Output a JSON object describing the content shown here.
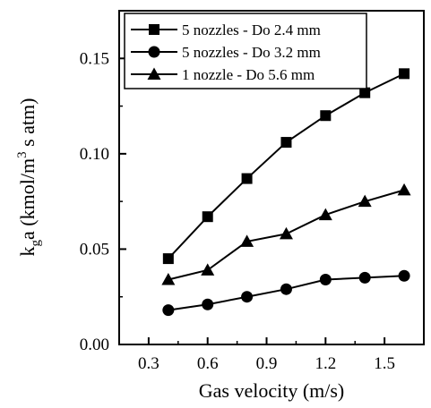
{
  "chart_data": {
    "type": "line",
    "xlabel": "Gas velocity (m/s)",
    "ylabel": {
      "base": "k",
      "base_sub": "g",
      "middle": "a (kmol/m",
      "sup": "3",
      "end": " s atm)"
    },
    "xlim": [
      0.15,
      1.7
    ],
    "ylim": [
      0.0,
      0.175
    ],
    "xticks": [
      0.3,
      0.6,
      0.9,
      1.2,
      1.5
    ],
    "xtick_labels": [
      "0.3",
      "0.6",
      "0.9",
      "1.2",
      "1.5"
    ],
    "yticks": [
      0.0,
      0.05,
      0.1,
      0.15
    ],
    "ytick_labels": [
      "0.00",
      "0.05",
      "0.10",
      "0.15"
    ],
    "grid": false,
    "legend_position": "top-left",
    "x": [
      0.4,
      0.6,
      0.8,
      1.0,
      1.2,
      1.4,
      1.6
    ],
    "series": [
      {
        "name": "5 nozzles - Do 2.4 mm",
        "marker": "square",
        "values": [
          0.045,
          0.067,
          0.087,
          0.106,
          0.12,
          0.132,
          0.142
        ]
      },
      {
        "name": "5 nozzles - Do 3.2 mm",
        "marker": "circle",
        "values": [
          0.018,
          0.021,
          0.025,
          0.029,
          0.034,
          0.035,
          0.036
        ]
      },
      {
        "name": "1 nozzle - Do 5.6 mm",
        "marker": "triangle",
        "values": [
          0.034,
          0.039,
          0.054,
          0.058,
          0.068,
          0.075,
          0.081
        ]
      }
    ],
    "colors": {
      "line": "#000000",
      "marker": "#000000",
      "axis": "#000000"
    }
  }
}
